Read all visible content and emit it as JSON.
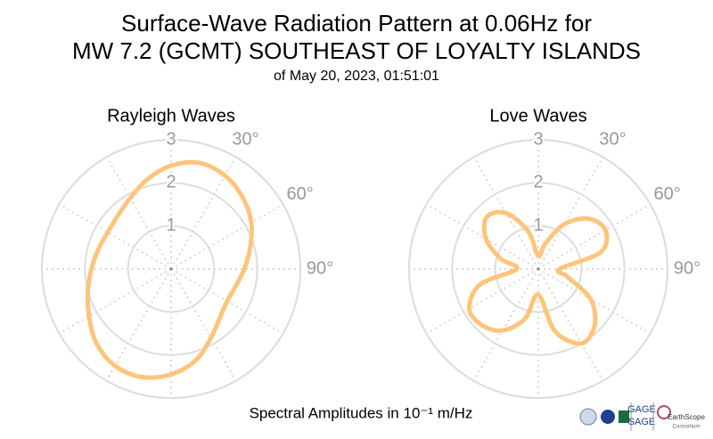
{
  "header": {
    "title_lines": [
      "Surface-Wave Radiation Pattern at 0.06Hz for",
      "MW 7.2 (GCMT) SOUTHEAST OF LOYALTY ISLANDS"
    ],
    "subtitle": "of May 20, 2023, 01:51:01"
  },
  "footnote": "Spectral Amplitudes in 10⁻¹ m/Hz",
  "logos": [
    "GAGE",
    "SAGE",
    "EarthScope",
    "Consortium"
  ],
  "chart_data": [
    {
      "type": "polar",
      "title": "Rayleigh Waves",
      "color": "#fdc57b",
      "theta": [
        0,
        15,
        30,
        45,
        60,
        75,
        90,
        105,
        120,
        135,
        150,
        165,
        180,
        195,
        210,
        225,
        240,
        255,
        270,
        285,
        300,
        315,
        330,
        345
      ],
      "r": [
        2.4,
        2.55,
        2.5,
        2.35,
        2.15,
        1.9,
        1.7,
        1.55,
        1.5,
        1.6,
        1.85,
        2.2,
        2.45,
        2.6,
        2.6,
        2.45,
        2.2,
        2.0,
        1.85,
        1.75,
        1.7,
        1.75,
        1.9,
        2.15
      ],
      "rlim": [
        0,
        3
      ],
      "rticks": [
        1,
        2,
        3
      ],
      "thetaticks": [
        {
          "value": 0,
          "label": null
        },
        {
          "value": 30,
          "label": "30°"
        },
        {
          "value": 60,
          "label": "60°"
        },
        {
          "value": 90,
          "label": "90°"
        },
        {
          "value": 120,
          "label": null
        },
        {
          "value": 150,
          "label": null
        },
        {
          "value": 180,
          "label": null
        },
        {
          "value": 210,
          "label": null
        },
        {
          "value": 240,
          "label": null
        },
        {
          "value": 270,
          "label": null
        },
        {
          "value": 300,
          "label": null
        },
        {
          "value": 330,
          "label": null
        }
      ],
      "grid": true
    },
    {
      "type": "polar",
      "title": "Love Waves",
      "color": "#fdc57b",
      "theta": [
        0,
        15,
        30,
        45,
        60,
        75,
        90,
        105,
        120,
        135,
        150,
        165,
        180,
        195,
        210,
        225,
        240,
        255,
        270,
        285,
        300,
        315,
        330,
        345
      ],
      "r": [
        0.3,
        0.6,
        1.2,
        1.65,
        1.8,
        1.5,
        0.5,
        0.7,
        1.4,
        1.85,
        2.0,
        1.5,
        0.6,
        1.2,
        1.65,
        1.85,
        1.85,
        1.4,
        0.5,
        0.9,
        1.4,
        1.7,
        1.5,
        0.9
      ],
      "rlim": [
        0,
        3
      ],
      "rticks": [
        1,
        2,
        3
      ],
      "thetaticks": [
        {
          "value": 0,
          "label": null
        },
        {
          "value": 30,
          "label": "30°"
        },
        {
          "value": 60,
          "label": "60°"
        },
        {
          "value": 90,
          "label": "90°"
        },
        {
          "value": 120,
          "label": null
        },
        {
          "value": 150,
          "label": null
        },
        {
          "value": 180,
          "label": null
        },
        {
          "value": 210,
          "label": null
        },
        {
          "value": 240,
          "label": null
        },
        {
          "value": 270,
          "label": null
        },
        {
          "value": 300,
          "label": null
        },
        {
          "value": 330,
          "label": null
        }
      ],
      "grid": true
    }
  ]
}
